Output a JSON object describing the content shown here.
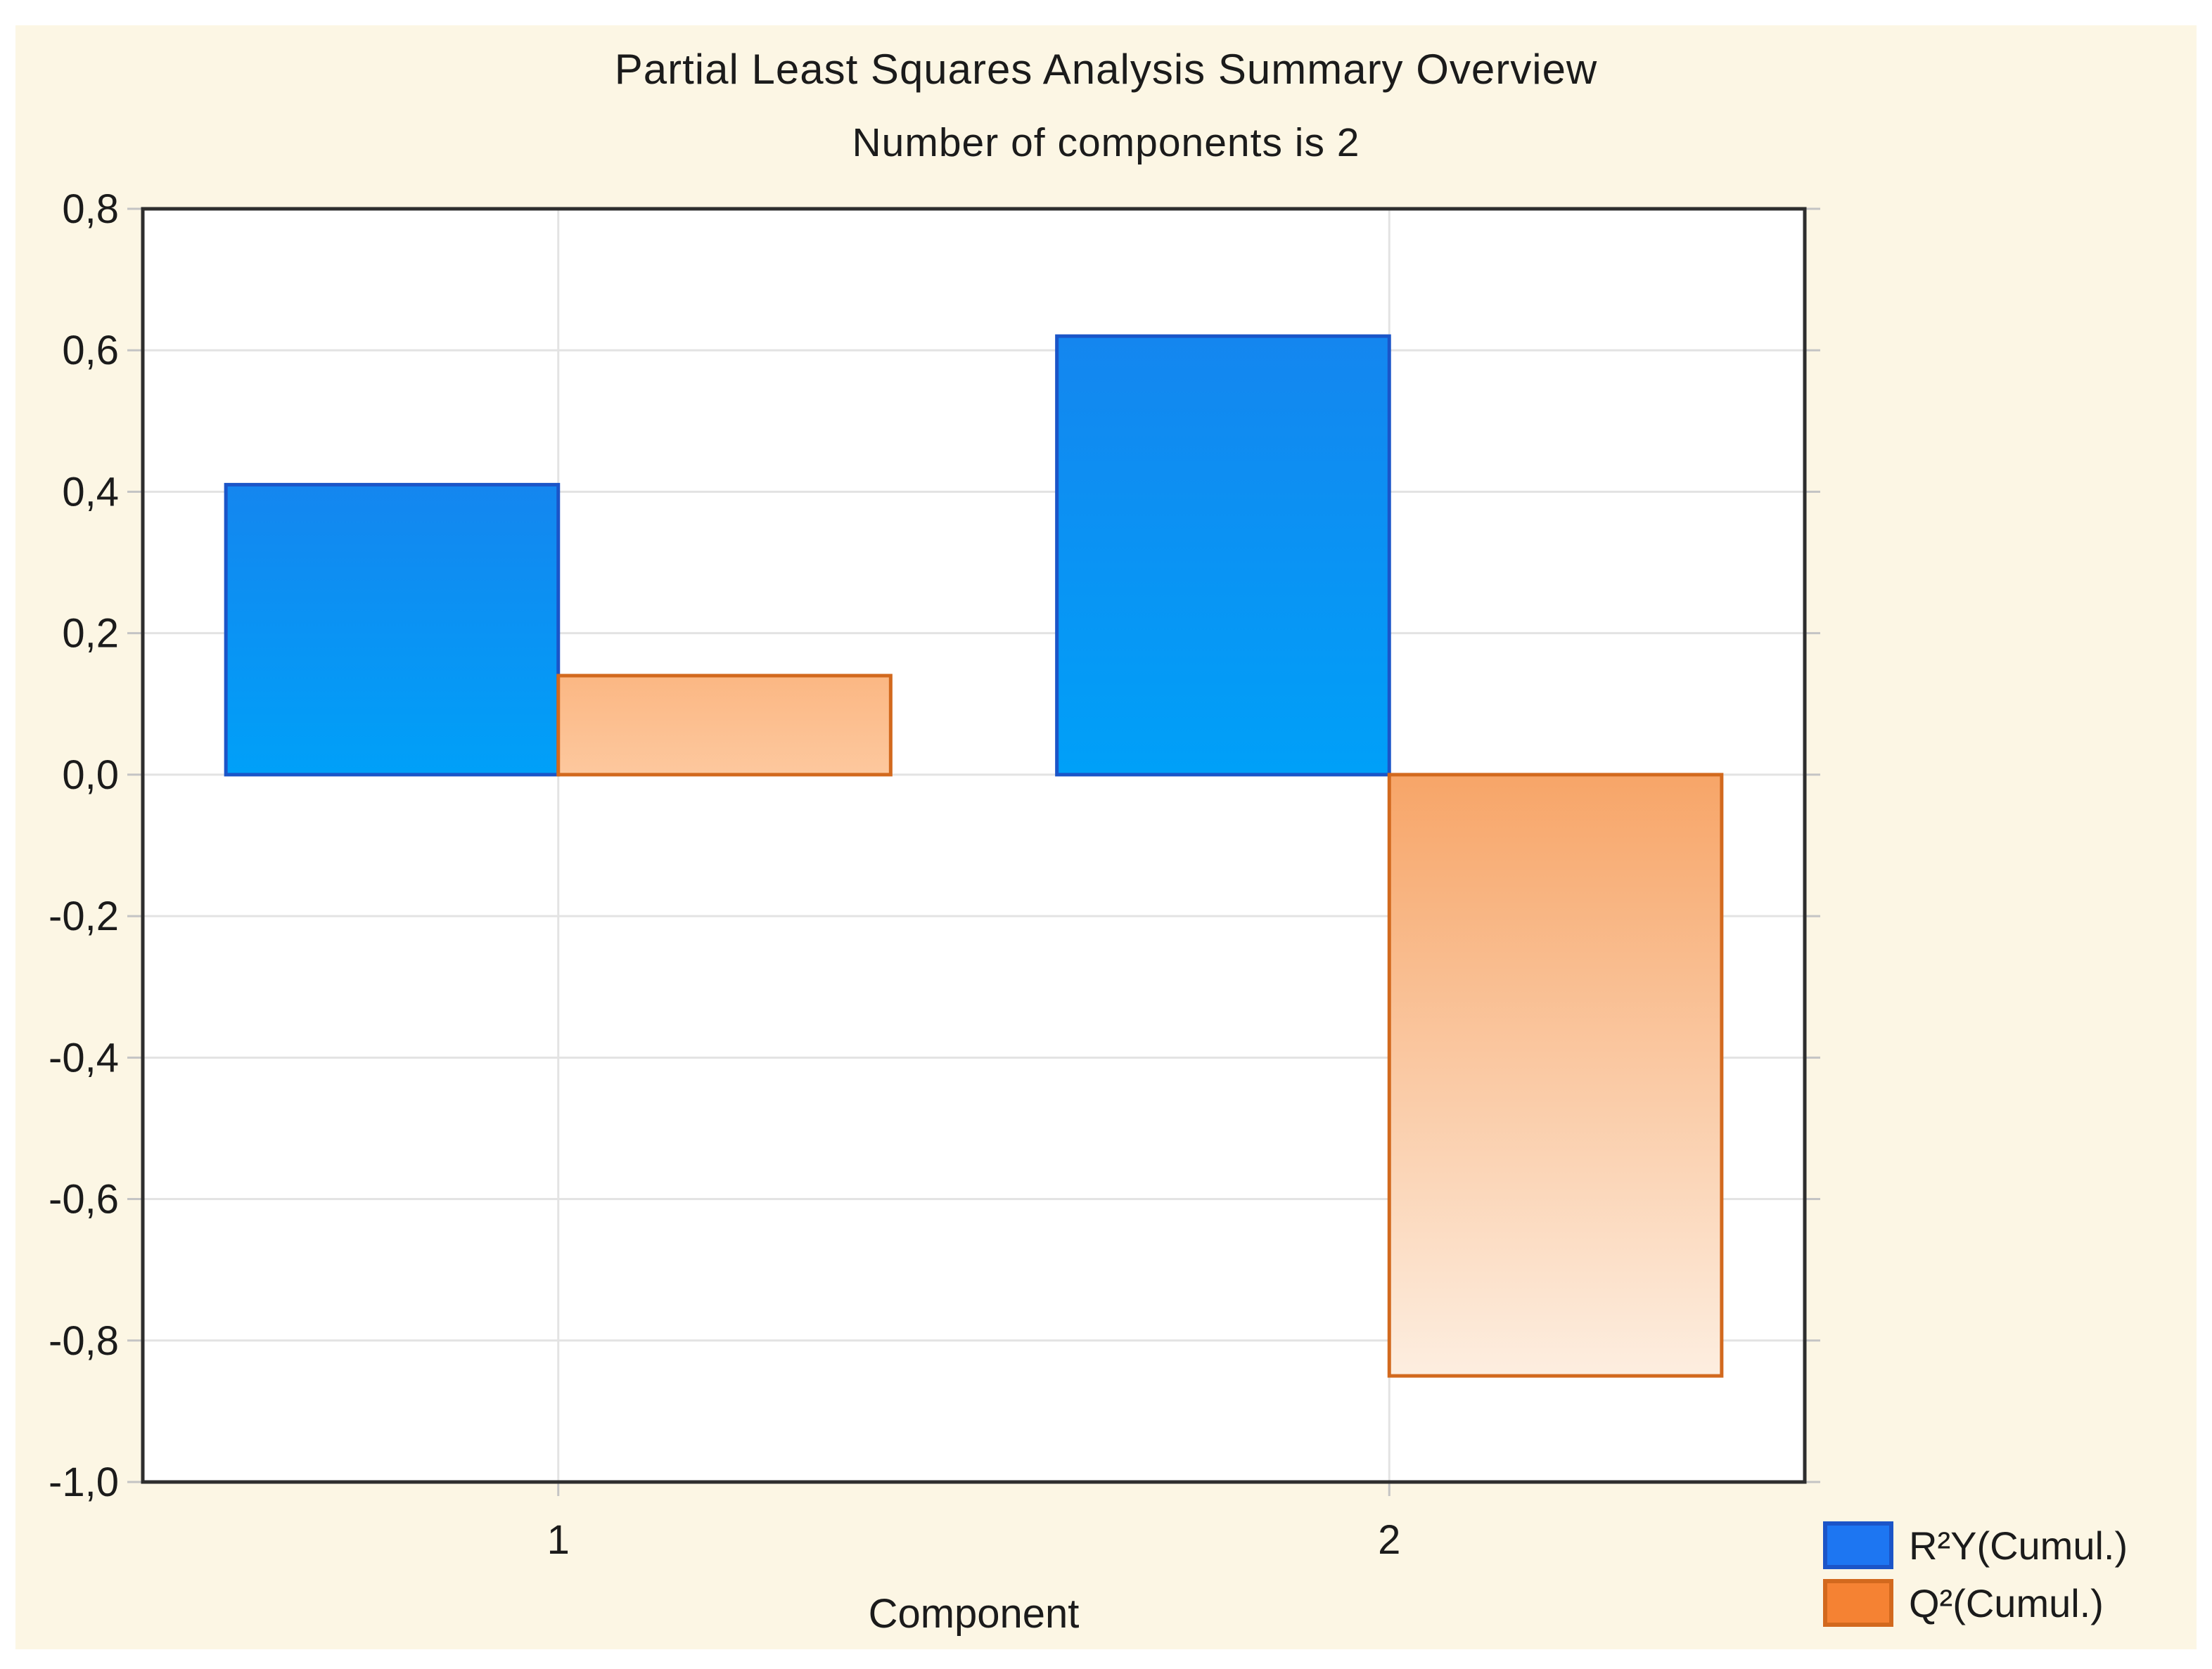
{
  "title": "Partial Least Squares Analysis Summary Overview",
  "subtitle": "Number of components is 2",
  "colors": {
    "page_bg": "#FFFFFF",
    "panel_bg": "#FCF6E4",
    "plot_bg": "#FFFFFF",
    "frame": "#2E2E2E",
    "grid": "#E3E3E3",
    "tick": "#C4C4C4",
    "text": "#1B1B1B",
    "series": [
      {
        "key": "r2y",
        "fill_top": "#1486EF",
        "fill_bottom": "#00A0F8",
        "border": "#1B55C8",
        "legend_fill": "#1D76F2"
      },
      {
        "key": "q2",
        "fill_top": "#FBB783",
        "fill_bottom": "#FDC89E",
        "fill_neg_top": "#F7A568",
        "fill_neg_bottom": "#FDEEE0",
        "border": "#D2691E",
        "legend_fill": "#F58233"
      }
    ]
  },
  "chart_data": {
    "type": "bar",
    "title": "Partial Least Squares Analysis Summary Overview",
    "subtitle": "Number of components is 2",
    "categories": [
      "1",
      "2"
    ],
    "series": [
      {
        "name": "R²Y(Cumul.)",
        "values": [
          0.41,
          0.62
        ]
      },
      {
        "name": "Q²(Cumul.)",
        "values": [
          0.14,
          -0.85
        ]
      }
    ],
    "xlabel": "Component",
    "ylabel": "",
    "ylim": [
      -1.0,
      0.8
    ],
    "ytick_step": 0.2,
    "ytick_labels": [
      "0,8",
      "0,6",
      "0,4",
      "0,2",
      "0,0",
      "-0,2",
      "-0,4",
      "-0,6",
      "-0,8",
      "-1,0"
    ],
    "decimal_separator": ",",
    "grid": true,
    "legend_position": "bottom-right"
  }
}
